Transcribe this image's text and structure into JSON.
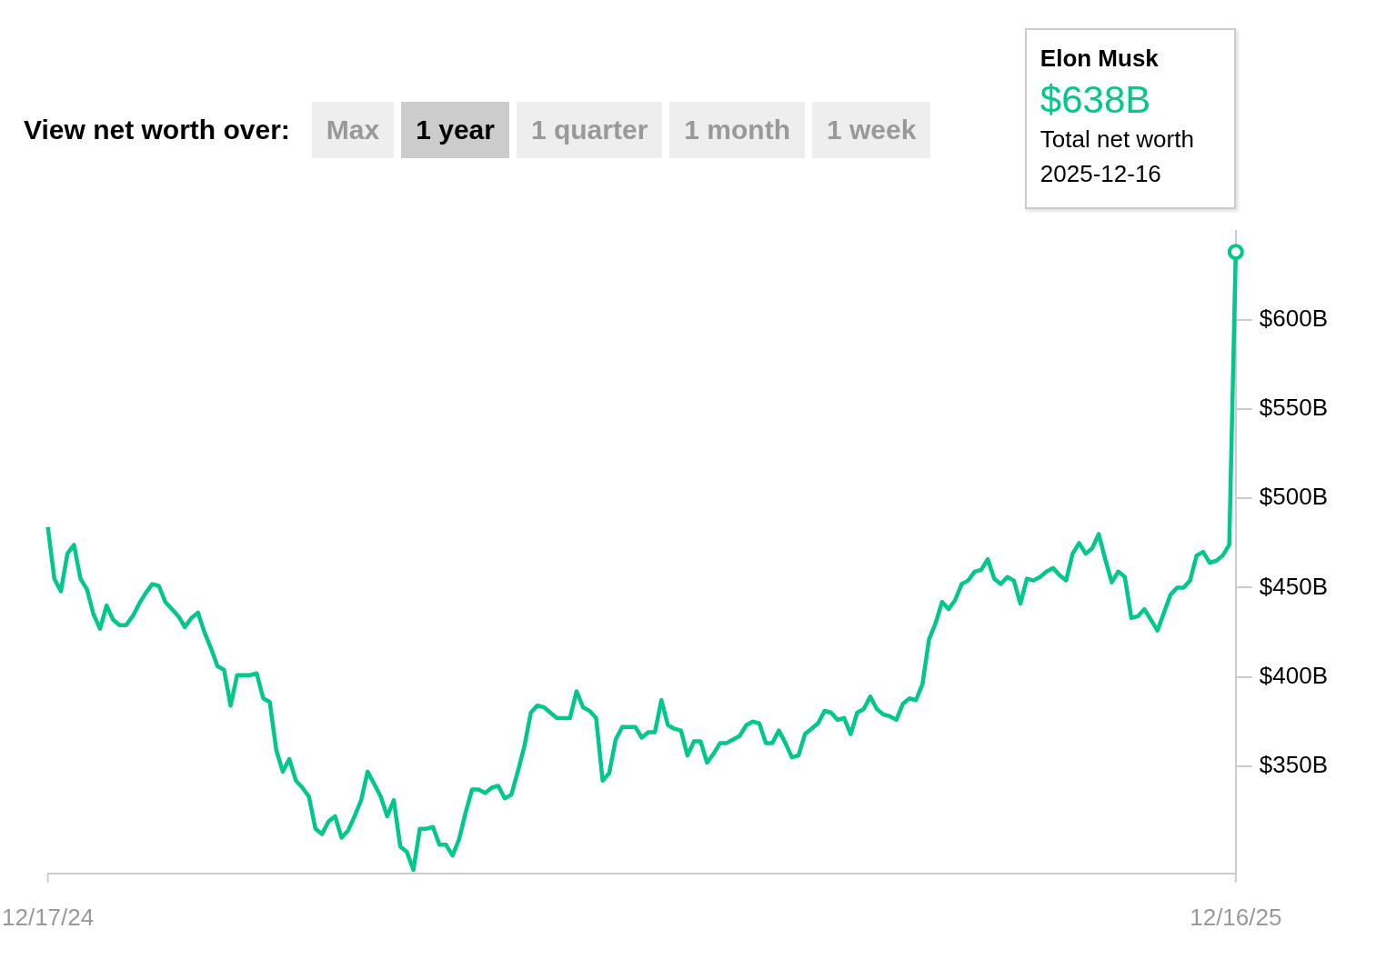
{
  "chart_data": {
    "type": "line",
    "categories": [
      "12/17/24",
      null,
      null,
      null,
      null,
      null,
      null,
      null,
      null,
      null,
      null,
      null,
      null,
      null,
      null,
      null,
      null,
      null,
      null,
      null,
      null,
      null,
      null,
      null,
      null,
      null,
      null,
      null,
      null,
      null,
      null,
      null,
      null,
      null,
      null,
      null,
      null,
      null,
      null,
      null,
      null,
      null,
      null,
      null,
      null,
      null,
      null,
      null,
      null,
      null,
      null,
      null,
      null,
      null,
      null,
      null,
      null,
      null,
      null,
      null,
      null,
      null,
      null,
      null,
      null,
      null,
      null,
      null,
      null,
      null,
      null,
      null,
      null,
      null,
      null,
      null,
      null,
      null,
      null,
      null,
      null,
      null,
      null,
      null,
      null,
      null,
      null,
      null,
      null,
      null,
      null,
      null,
      null,
      null,
      null,
      null,
      null,
      null,
      null,
      null,
      null,
      null,
      null,
      null,
      null,
      null,
      null,
      null,
      null,
      null,
      null,
      null,
      null,
      null,
      null,
      null,
      null,
      null,
      null,
      null,
      null,
      null,
      null,
      null,
      null,
      null,
      null,
      null,
      null,
      null,
      null,
      null,
      null,
      null,
      null,
      null,
      null,
      null,
      null,
      null,
      null,
      null,
      null,
      null,
      null,
      null,
      null,
      null,
      null,
      null,
      null,
      null,
      null,
      null,
      null,
      null,
      null,
      null,
      null,
      null,
      null,
      null,
      null,
      null,
      null,
      null,
      null,
      null,
      null,
      null,
      null,
      null,
      null,
      null,
      null,
      null,
      null,
      null,
      null,
      null,
      null,
      null,
      "12/16/25"
    ],
    "series": [
      {
        "name": "Elon Musk",
        "color": "#00c78c",
        "values": [
          484,
          455,
          448,
          469,
          474,
          455,
          449,
          435,
          427,
          440,
          432,
          429,
          429,
          434,
          441,
          447,
          452,
          451,
          442,
          438,
          434,
          428,
          433,
          436,
          425,
          416,
          406,
          404,
          384,
          401,
          401,
          401,
          402,
          388,
          386,
          359,
          347,
          354,
          342,
          338,
          333,
          315,
          312,
          319,
          322,
          310,
          314,
          322,
          331,
          347,
          340,
          333,
          322,
          331,
          305,
          302,
          292,
          315,
          315,
          316,
          306,
          306,
          300,
          309,
          324,
          337,
          337,
          335,
          338,
          339,
          332,
          334,
          347,
          361,
          380,
          384,
          383,
          380,
          377,
          377,
          377,
          392,
          383,
          381,
          377,
          342,
          346,
          365,
          372,
          372,
          372,
          366,
          369,
          369,
          387,
          373,
          371,
          370,
          356,
          364,
          364,
          352,
          357,
          363,
          363,
          365,
          367,
          373,
          375,
          374,
          363,
          363,
          370,
          363,
          355,
          356,
          368,
          371,
          374,
          381,
          380,
          376,
          377,
          368,
          380,
          382,
          389,
          382,
          379,
          378,
          376,
          385,
          388,
          387,
          396,
          421,
          430,
          442,
          438,
          443,
          452,
          454,
          459,
          460,
          466,
          455,
          452,
          456,
          454,
          441,
          455,
          454,
          456,
          459,
          461,
          457,
          454,
          469,
          475,
          469,
          472,
          480,
          466,
          453,
          459,
          456,
          433,
          434,
          438,
          432,
          426,
          436,
          446,
          450,
          450,
          454,
          468,
          470,
          464,
          465,
          468,
          474,
          638
        ]
      }
    ],
    "ylim": [
      290,
      650
    ],
    "yticks": [
      {
        "value": 350,
        "label": "$350B"
      },
      {
        "value": 400,
        "label": "$400B"
      },
      {
        "value": 450,
        "label": "$450B"
      },
      {
        "value": 500,
        "label": "$500B"
      },
      {
        "value": 550,
        "label": "$550B"
      },
      {
        "value": 600,
        "label": "$600B"
      }
    ],
    "annotations": [
      "View net worth over:",
      "Max",
      "1 year",
      "1 quarter",
      "1 month",
      "1 week",
      "$638B",
      "Total net worth",
      "2025-12-16"
    ]
  }
}
